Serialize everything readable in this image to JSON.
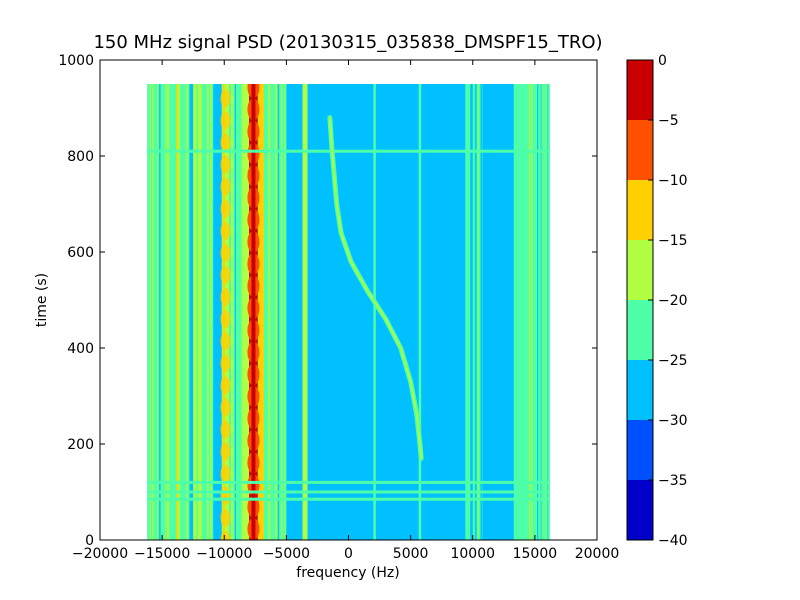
{
  "chart_data": {
    "type": "heatmap",
    "title": "150 MHz signal PSD (20130315_035838_DMSPF15_TRO)",
    "xlabel": "frequency (Hz)",
    "ylabel": "time (s)",
    "xlim": [
      -20000,
      20000
    ],
    "ylim": [
      0,
      1000
    ],
    "xticks": [
      -20000,
      -15000,
      -10000,
      -5000,
      0,
      5000,
      10000,
      15000,
      20000
    ],
    "xtick_labels": [
      "−20000",
      "−15000",
      "−10000",
      "−5000",
      "0",
      "5000",
      "10000",
      "15000",
      "20000"
    ],
    "yticks": [
      0,
      200,
      400,
      600,
      800,
      1000
    ],
    "ytick_labels": [
      "0",
      "200",
      "400",
      "600",
      "800",
      "1000"
    ],
    "data_extent": {
      "freq": [
        -16200,
        16200
      ],
      "time": [
        0,
        950
      ]
    },
    "colorbar": {
      "range": [
        -40,
        0
      ],
      "ticks": [
        0,
        -5,
        -10,
        -15,
        -20,
        -25,
        -30,
        -35,
        -40
      ],
      "tick_labels": [
        "0",
        "−5",
        "−10",
        "−15",
        "−20",
        "−25",
        "−30",
        "−35",
        "−40"
      ],
      "levels": [
        {
          "from": -40,
          "to": -35,
          "color": "#0000c8"
        },
        {
          "from": -35,
          "to": -30,
          "color": "#0050ff"
        },
        {
          "from": -30,
          "to": -25,
          "color": "#00c0ff"
        },
        {
          "from": -25,
          "to": -20,
          "color": "#4dffa8"
        },
        {
          "from": -20,
          "to": -15,
          "color": "#b0ff40"
        },
        {
          "from": -15,
          "to": -10,
          "color": "#ffd000"
        },
        {
          "from": -10,
          "to": -5,
          "color": "#ff5000"
        },
        {
          "from": -5,
          "to": 0,
          "color": "#c80000"
        }
      ]
    },
    "background_level_db": -27,
    "horizontal_features": [
      {
        "time": 810,
        "level_db": -22
      },
      {
        "time": 120,
        "level_db": -22
      },
      {
        "time": 100,
        "level_db": -22
      },
      {
        "time": 85,
        "level_db": -22
      }
    ],
    "vertical_features": [
      {
        "freq_from": -16200,
        "freq_to": -12800,
        "level_db": -20,
        "textured": true
      },
      {
        "freq_from": -12500,
        "freq_to": -11800,
        "level_db": -18,
        "textured": true
      },
      {
        "freq_from": -11800,
        "freq_to": -10800,
        "level_db": -22,
        "textured": true
      },
      {
        "freq_from": -10200,
        "freq_to": -9600,
        "level_db": -17,
        "textured": true
      },
      {
        "freq_from": -9600,
        "freq_to": -8500,
        "level_db": -20,
        "textured": true
      },
      {
        "freq_from": -8500,
        "freq_to": -8000,
        "level_db": -15,
        "textured": false
      },
      {
        "freq_from": -8000,
        "freq_to": -7300,
        "level_db": -3,
        "textured": false
      },
      {
        "freq_from": -7300,
        "freq_to": -6800,
        "level_db": -12,
        "textured": false
      },
      {
        "freq_from": -6800,
        "freq_to": -5000,
        "level_db": -21,
        "textured": true
      },
      {
        "freq_from": -3700,
        "freq_to": -3300,
        "level_db": -19,
        "textured": false
      },
      {
        "freq_from": 2000,
        "freq_to": 2200,
        "level_db": -23,
        "textured": false
      },
      {
        "freq_from": 5650,
        "freq_to": 5850,
        "level_db": -23,
        "textured": false
      },
      {
        "freq_from": 9400,
        "freq_to": 9800,
        "level_db": -20,
        "textured": false
      },
      {
        "freq_from": 10000,
        "freq_to": 10800,
        "level_db": -22,
        "textured": true
      },
      {
        "freq_from": 13300,
        "freq_to": 16200,
        "level_db": -22,
        "textured": true
      }
    ],
    "doppler_track": {
      "level_db": -18,
      "points": [
        {
          "freq": -1500,
          "time": 880
        },
        {
          "freq": -1350,
          "time": 820
        },
        {
          "freq": -1150,
          "time": 760
        },
        {
          "freq": -950,
          "time": 700
        },
        {
          "freq": -600,
          "time": 640
        },
        {
          "freq": 200,
          "time": 580
        },
        {
          "freq": 1500,
          "time": 520
        },
        {
          "freq": 3000,
          "time": 460
        },
        {
          "freq": 4200,
          "time": 400
        },
        {
          "freq": 5000,
          "time": 330
        },
        {
          "freq": 5500,
          "time": 260
        },
        {
          "freq": 5750,
          "time": 200
        },
        {
          "freq": 5850,
          "time": 170
        }
      ]
    }
  }
}
